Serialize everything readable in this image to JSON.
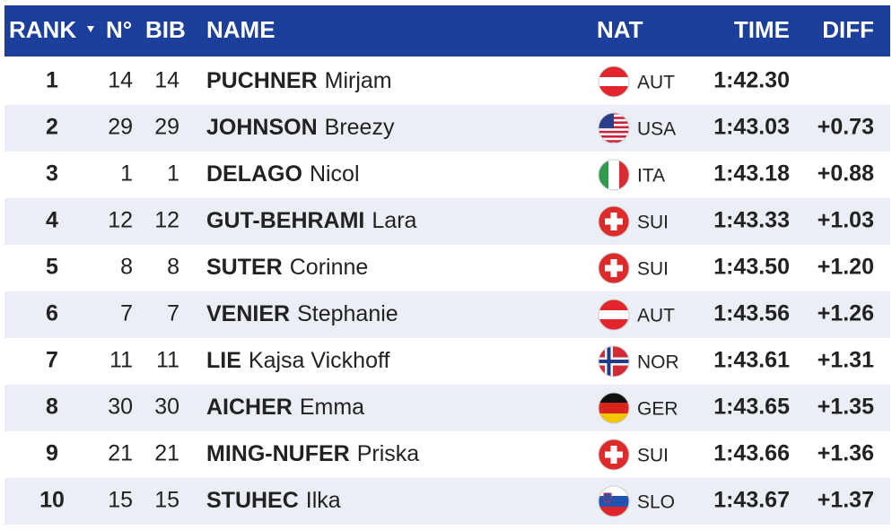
{
  "header": {
    "columns": [
      "RANK",
      "N°",
      "BIB",
      "NAME",
      "NAT",
      "TIME",
      "DIFF"
    ]
  },
  "table": {
    "rows": [
      [
        1,
        14,
        14,
        "PUCHNER",
        "Mirjam",
        "AUT",
        "1:42.30"
      ],
      [
        2,
        29,
        29,
        "JOHNSON",
        "Breezy",
        "USA",
        "1:43.03",
        "+0.73"
      ],
      [
        3,
        1,
        1,
        "DELAGO",
        "Nicol",
        "ITA",
        "1:43.18",
        "+0.88"
      ],
      [
        4,
        12,
        12,
        "GUT-BEHRAMI",
        "Lara",
        "SUI",
        "1:43.33",
        "+1.03"
      ],
      [
        5,
        8,
        8,
        "SUTER",
        "Corinne",
        "SUI",
        "1:43.50",
        "+1.20"
      ],
      [
        6,
        7,
        7,
        "VENIER",
        "Stephanie",
        "AUT",
        "1:43.56",
        "+1.26"
      ],
      [
        7,
        11,
        11,
        "LIE",
        "Kajsa Vickhoff",
        "NOR",
        "1:43.61",
        "+1.31"
      ],
      [
        8,
        30,
        30,
        "AICHER",
        "Emma",
        "GER",
        "1:43.65",
        "+1.35"
      ],
      [
        9,
        21,
        21,
        "MING-NUFER",
        "Priska",
        "SUI",
        "1:43.66",
        "+1.36"
      ],
      [
        10,
        15,
        15,
        "STUHEC",
        "Ilka",
        "SLO",
        "1:43.67",
        "+1.37"
      ]
    ]
  }
}
